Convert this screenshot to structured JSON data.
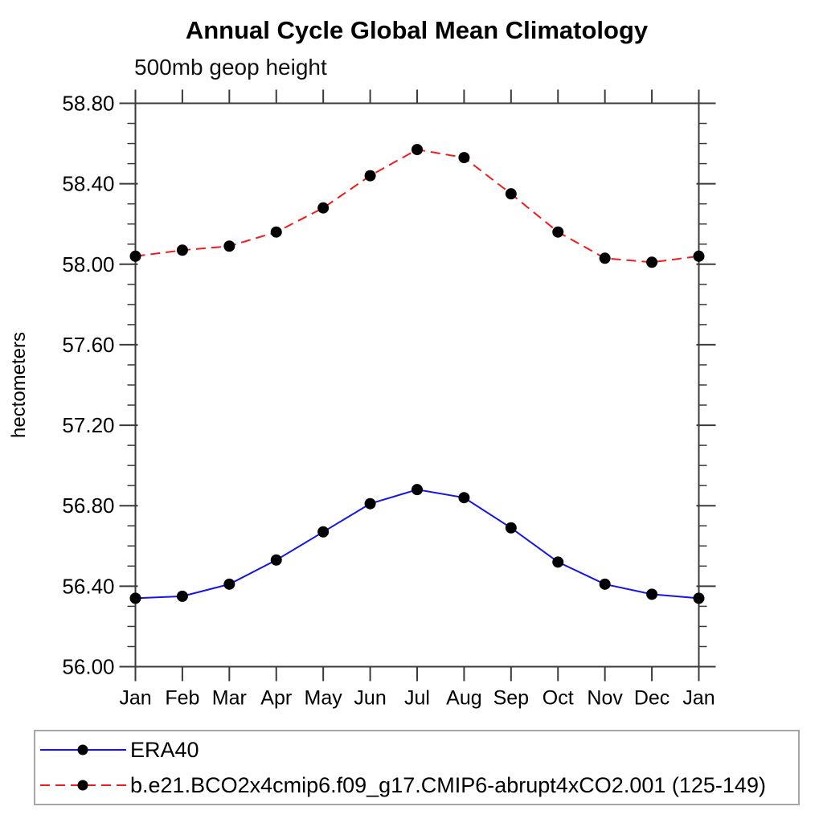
{
  "chart_data": {
    "type": "line",
    "title": "Annual Cycle Global Mean Climatology",
    "subtitle": "500mb geop height",
    "ylabel": "hectometers",
    "categories": [
      "Jan",
      "Feb",
      "Mar",
      "Apr",
      "May",
      "Jun",
      "Jul",
      "Aug",
      "Sep",
      "Oct",
      "Nov",
      "Dec",
      "Jan"
    ],
    "ylim": [
      56.0,
      58.8
    ],
    "ytick_labels": [
      "56.00",
      "56.40",
      "56.80",
      "57.20",
      "57.60",
      "58.00",
      "58.40",
      "58.80"
    ],
    "ytick_major_step": 0.4,
    "ytick_minor_step": 0.1,
    "grid": false,
    "legend_position": "bottom-left-box",
    "axis_color": "#3a3a3a",
    "legend_border_color": "#a6a6a6",
    "series": [
      {
        "name": "ERA40",
        "color": "#1414e6",
        "line_style": "solid",
        "marker": "filled-circle",
        "marker_color": "#000000",
        "values": [
          56.34,
          56.35,
          56.41,
          56.53,
          56.67,
          56.81,
          56.88,
          56.84,
          56.69,
          56.52,
          56.41,
          56.36,
          56.34
        ]
      },
      {
        "name": "b.e21.BCO2x4cmip6.f09_g17.CMIP6-abrupt4xCO2.001 (125-149)",
        "color": "#ee1c1c",
        "line_style": "dashed",
        "marker": "filled-circle",
        "marker_color": "#000000",
        "values": [
          58.04,
          58.07,
          58.09,
          58.16,
          58.28,
          58.44,
          58.57,
          58.53,
          58.35,
          58.16,
          58.03,
          58.01,
          58.04
        ]
      }
    ]
  }
}
